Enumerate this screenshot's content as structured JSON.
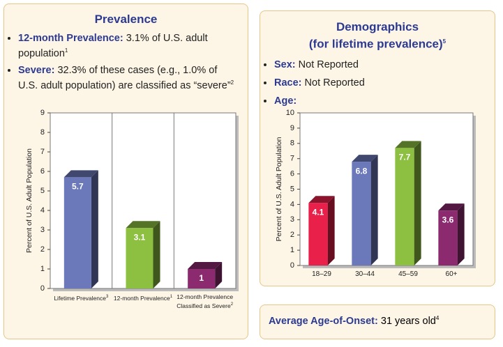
{
  "prevalence": {
    "title": "Prevalence",
    "bullets": [
      {
        "label": "12-month Prevalence:",
        "text": "3.1% of U.S. adult population",
        "note": "1"
      },
      {
        "label": "Severe:",
        "text": "32.3% of these cases (e.g., 1.0% of U.S. adult population) are classified as “severe”",
        "note": "2"
      }
    ]
  },
  "demographics": {
    "title": "Demographics",
    "subtitle": "(for lifetime prevalence)",
    "note": "5",
    "bullets": [
      {
        "label": "Sex:",
        "text": "Not Reported"
      },
      {
        "label": "Race:",
        "text": "Not Reported"
      },
      {
        "label": "Age:"
      }
    ]
  },
  "onset": {
    "label": "Average Age-of-Onset:",
    "text": "31 years old",
    "note": "4"
  },
  "chart_data": [
    {
      "type": "bar",
      "ylabel": "Percent of U.S. Adult Population",
      "categories": [
        "Lifetime Prevalence",
        "12-month Prevalence",
        "12-month Prevalence Classified as Severe"
      ],
      "category_notes": [
        "3",
        "1",
        "2"
      ],
      "values": [
        5.7,
        3.1,
        1.0
      ],
      "colors": [
        "#6b78b9",
        "#8dc041",
        "#8c2a6f"
      ],
      "ylim": [
        0,
        9
      ],
      "yticks": [
        0,
        1,
        2,
        3,
        4,
        5,
        6,
        7,
        8,
        9
      ]
    },
    {
      "type": "bar",
      "ylabel": "Percent of U.S. Adult Population",
      "categories": [
        "18–29",
        "30–44",
        "45–59",
        "60+"
      ],
      "values": [
        4.1,
        6.8,
        7.7,
        3.6
      ],
      "colors": [
        "#e8204a",
        "#6b78b9",
        "#8dc041",
        "#8c2a6f"
      ],
      "ylim": [
        0,
        10
      ],
      "yticks": [
        0,
        1,
        2,
        3,
        4,
        5,
        6,
        7,
        8,
        9,
        10
      ]
    }
  ]
}
